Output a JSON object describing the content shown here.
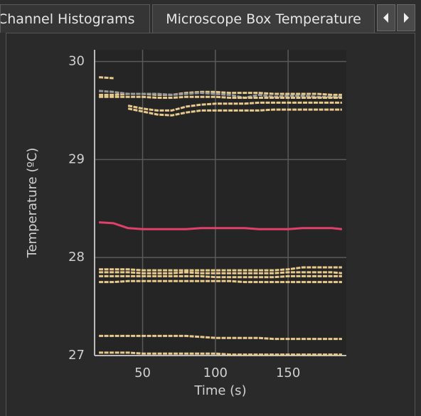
{
  "tabs": [
    "Channel Histograms",
    "Microscope Box Temperature"
  ],
  "chart_data": {
    "type": "line",
    "xlabel": "Time (s)",
    "ylabel": "Temperature (ºC)",
    "x": [
      20,
      30,
      40,
      50,
      60,
      70,
      80,
      90,
      100,
      110,
      120,
      130,
      140,
      150,
      160,
      170,
      180,
      187
    ],
    "xlim": [
      17,
      190
    ],
    "ylim": [
      27,
      30.12
    ],
    "xticks": [
      50,
      100,
      150
    ],
    "yticks": [
      27,
      28,
      29,
      30
    ],
    "grid": true,
    "series": [
      {
        "color": "#e8c98c",
        "values": [
          29.84,
          29.83,
          null,
          null,
          null,
          null,
          null,
          null,
          null,
          null,
          null,
          null,
          null,
          null,
          null,
          null,
          null,
          null
        ]
      },
      {
        "color": "#e8c98c",
        "values": [
          29.66,
          29.66,
          29.67,
          29.67,
          29.66,
          29.66,
          29.68,
          29.69,
          29.69,
          29.68,
          29.68,
          29.68,
          29.67,
          29.67,
          29.67,
          29.67,
          29.66,
          29.66
        ]
      },
      {
        "color": "#9a9a9a",
        "values": [
          29.7,
          29.69,
          29.67,
          29.67,
          29.67,
          29.66,
          29.67,
          29.68,
          29.67,
          29.66,
          29.63,
          29.66,
          29.64,
          29.65,
          29.65,
          29.64,
          29.64,
          29.64
        ]
      },
      {
        "color": "#e8c98c",
        "values": [
          29.64,
          29.64,
          29.64,
          29.64,
          29.63,
          29.63,
          29.64,
          29.64,
          29.64,
          29.63,
          29.63,
          29.63,
          29.63,
          29.63,
          29.63,
          29.63,
          29.63,
          29.63
        ]
      },
      {
        "color": "#e8c98c",
        "values": [
          null,
          null,
          29.55,
          29.52,
          29.5,
          29.5,
          29.54,
          29.56,
          29.57,
          29.57,
          29.57,
          29.58,
          29.58,
          29.58,
          29.58,
          29.58,
          29.58,
          29.58
        ]
      },
      {
        "color": "#e8c98c",
        "values": [
          null,
          null,
          29.52,
          29.49,
          29.46,
          29.45,
          29.48,
          29.5,
          29.5,
          29.5,
          29.5,
          29.5,
          29.51,
          29.51,
          29.51,
          29.51,
          29.51,
          29.51
        ]
      },
      {
        "color": "#e0406a",
        "values": [
          28.36,
          28.35,
          28.3,
          28.29,
          28.29,
          28.29,
          28.29,
          28.3,
          28.3,
          28.3,
          28.3,
          28.29,
          28.29,
          28.29,
          28.3,
          28.3,
          28.3,
          28.29
        ]
      },
      {
        "color": "#e8c98c",
        "values": [
          27.88,
          27.88,
          27.88,
          27.87,
          27.87,
          27.87,
          27.87,
          27.87,
          27.87,
          27.87,
          27.87,
          27.87,
          27.87,
          27.88,
          27.9,
          27.9,
          27.9,
          27.9
        ]
      },
      {
        "color": "#e8c98c",
        "values": [
          27.85,
          27.85,
          27.85,
          27.84,
          27.84,
          27.84,
          27.85,
          27.84,
          27.84,
          27.84,
          27.84,
          27.84,
          27.84,
          27.85,
          27.85,
          27.85,
          27.85,
          27.84
        ]
      },
      {
        "color": "#e8c98c",
        "values": [
          27.81,
          27.81,
          27.81,
          27.81,
          27.81,
          27.81,
          27.81,
          27.81,
          27.8,
          27.8,
          27.8,
          27.8,
          27.8,
          27.81,
          27.81,
          27.81,
          27.81,
          27.81
        ]
      },
      {
        "color": "#e8c98c",
        "values": [
          27.75,
          27.75,
          27.76,
          27.76,
          27.76,
          27.76,
          27.76,
          27.76,
          27.76,
          27.76,
          27.75,
          27.75,
          27.75,
          27.75,
          27.75,
          27.75,
          27.75,
          27.75
        ]
      },
      {
        "color": "#e8c98c",
        "values": [
          27.2,
          27.2,
          27.2,
          27.2,
          27.2,
          27.2,
          27.2,
          27.19,
          27.18,
          27.18,
          27.18,
          27.18,
          27.17,
          27.17,
          27.17,
          27.17,
          27.17,
          27.17
        ]
      },
      {
        "color": "#e8c98c",
        "values": [
          27.03,
          27.03,
          27.03,
          27.02,
          27.02,
          27.02,
          27.02,
          27.02,
          27.02,
          27.01,
          27.01,
          27.01,
          27.01,
          27.01,
          27.01,
          27.01,
          27.01,
          27.01
        ]
      }
    ]
  }
}
